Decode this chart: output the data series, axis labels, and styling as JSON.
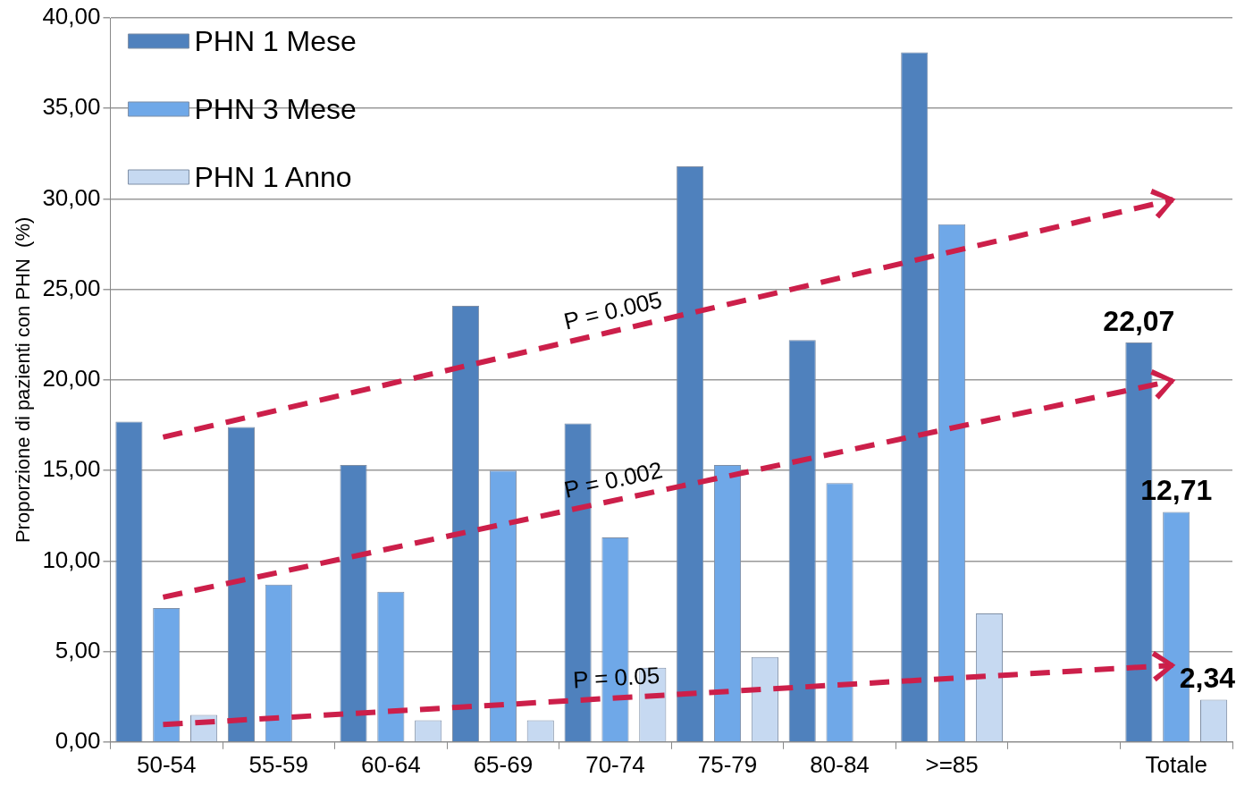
{
  "chart_data": {
    "type": "bar",
    "ylabel": "Proporzione di pazienti con PHN  (%)",
    "categories": [
      "50-54",
      "55-59",
      "60-64",
      "65-69",
      "70-74",
      "75-79",
      "80-84",
      ">=85",
      null,
      "Totale"
    ],
    "series": [
      {
        "name": "PHN 1 Mese",
        "color": "#4f81bd",
        "values": [
          17.7,
          17.4,
          15.3,
          24.1,
          17.6,
          31.8,
          22.2,
          38.1,
          null,
          22.07
        ],
        "value_labels": [
          null,
          null,
          null,
          null,
          null,
          null,
          null,
          null,
          null,
          "22,07"
        ]
      },
      {
        "name": "PHN 3 Mese",
        "color": "#6fa8e8",
        "values": [
          7.4,
          8.7,
          8.3,
          15.0,
          11.3,
          15.3,
          14.3,
          28.6,
          null,
          12.71
        ],
        "value_labels": [
          null,
          null,
          null,
          null,
          null,
          null,
          null,
          null,
          null,
          "12,71"
        ]
      },
      {
        "name": "PHN 1 Anno",
        "color": "#c6d9f1",
        "values": [
          1.5,
          null,
          1.2,
          1.2,
          4.1,
          4.7,
          null,
          7.1,
          null,
          2.34
        ],
        "value_labels": [
          null,
          null,
          null,
          null,
          null,
          null,
          null,
          null,
          null,
          "2,34"
        ]
      }
    ],
    "annotations": [
      "P = 0.005",
      "P = 0.002",
      "P = 0.05"
    ],
    "ylim": [
      0,
      40
    ],
    "yticks": [
      {
        "value": 0,
        "label": "0,00"
      },
      {
        "value": 5,
        "label": "5,00"
      },
      {
        "value": 10,
        "label": "10,00"
      },
      {
        "value": 15,
        "label": "15,00"
      },
      {
        "value": 20,
        "label": "20,00"
      },
      {
        "value": 25,
        "label": "25,00"
      },
      {
        "value": 30,
        "label": "30,00"
      },
      {
        "value": 35,
        "label": "35,00"
      },
      {
        "value": 40,
        "label": "40,00"
      }
    ],
    "grid": "y",
    "legend": "top left"
  }
}
